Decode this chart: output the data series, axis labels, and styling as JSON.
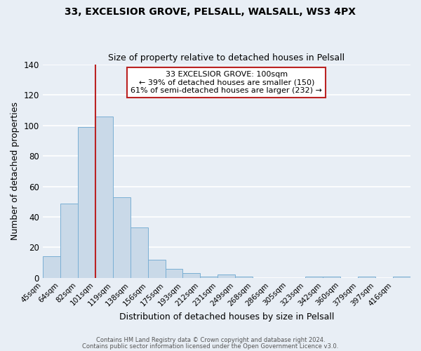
{
  "title1": "33, EXCELSIOR GROVE, PELSALL, WALSALL, WS3 4PX",
  "title2": "Size of property relative to detached houses in Pelsall",
  "xlabel": "Distribution of detached houses by size in Pelsall",
  "ylabel": "Number of detached properties",
  "bin_labels": [
    "45sqm",
    "64sqm",
    "82sqm",
    "101sqm",
    "119sqm",
    "138sqm",
    "156sqm",
    "175sqm",
    "193sqm",
    "212sqm",
    "231sqm",
    "249sqm",
    "268sqm",
    "286sqm",
    "305sqm",
    "323sqm",
    "342sqm",
    "360sqm",
    "379sqm",
    "397sqm",
    "416sqm"
  ],
  "bar_values": [
    14,
    49,
    99,
    106,
    53,
    33,
    12,
    6,
    3,
    1,
    2,
    1,
    0,
    0,
    0,
    1,
    1,
    0,
    1,
    0,
    1
  ],
  "bar_color": "#c9d9e8",
  "bar_edge_color": "#7aafd4",
  "bg_color": "#e8eef5",
  "grid_color": "#ffffff",
  "ref_line_color": "#bb2222",
  "annotation_title": "33 EXCELSIOR GROVE: 100sqm",
  "annotation_line1": "← 39% of detached houses are smaller (150)",
  "annotation_line2": "61% of semi-detached houses are larger (232) →",
  "annotation_box_color": "#ffffff",
  "annotation_box_edge": "#bb2222",
  "ylim": [
    0,
    140
  ],
  "yticks": [
    0,
    20,
    40,
    60,
    80,
    100,
    120,
    140
  ],
  "footer1": "Contains HM Land Registry data © Crown copyright and database right 2024.",
  "footer2": "Contains public sector information licensed under the Open Government Licence v3.0."
}
